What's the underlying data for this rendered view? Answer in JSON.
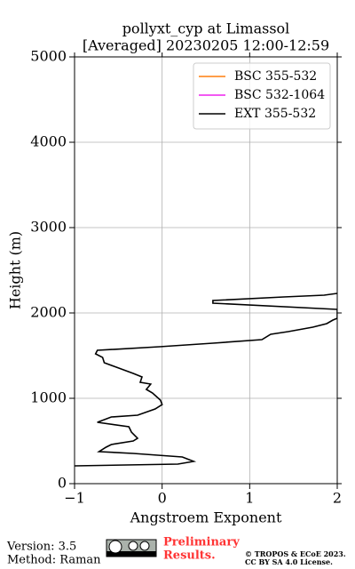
{
  "chart_data": {
    "type": "line",
    "title": "pollyxt_cyp at Limassol",
    "subtitle": "[Averaged] 20230205 12:00-12:59",
    "x_label": "Angstroem Exponent",
    "y_label": "Height (m)",
    "y": [
      208,
      229,
      260,
      312,
      354,
      375,
      427,
      458,
      500,
      531,
      604,
      667,
      719,
      781,
      802,
      875,
      927,
      979,
      1063,
      1104,
      1167,
      1188,
      1250,
      1292,
      1375,
      1417,
      1479,
      1521,
      1563,
      1604,
      1646,
      1688,
      1750,
      1781,
      1833,
      1875,
      1917,
      1938,
      2042,
      2115,
      2146,
      2188,
      2208,
      2229
    ],
    "series": [
      {
        "name": "BSC 355-532",
        "color": "#ff7f0e",
        "values": [
          null,
          null,
          null,
          null,
          null,
          null,
          null,
          null,
          null,
          null,
          null,
          null,
          null,
          null,
          null,
          null,
          null,
          null,
          null,
          null,
          null,
          null,
          null,
          null,
          null,
          null,
          null,
          null,
          null,
          null,
          null,
          null,
          null,
          null,
          null,
          null,
          null,
          null,
          null,
          null,
          null,
          null,
          null,
          null
        ]
      },
      {
        "name": "BSC 532-1064",
        "color": "#ee22ee",
        "values": [
          null,
          null,
          null,
          null,
          null,
          null,
          null,
          null,
          null,
          null,
          null,
          null,
          null,
          null,
          null,
          null,
          null,
          null,
          null,
          null,
          null,
          null,
          null,
          null,
          null,
          null,
          null,
          null,
          null,
          null,
          null,
          null,
          null,
          null,
          null,
          null,
          null,
          null,
          null,
          null,
          null,
          null,
          null,
          null
        ]
      },
      {
        "name": "EXT 355-532",
        "color": "#000000",
        "values": [
          -1.0,
          0.18,
          0.36,
          0.23,
          -0.33,
          -0.72,
          -0.64,
          -0.58,
          -0.33,
          -0.28,
          -0.35,
          -0.38,
          -0.74,
          -0.58,
          -0.28,
          -0.08,
          0.0,
          -0.02,
          -0.11,
          -0.18,
          -0.13,
          -0.25,
          -0.23,
          -0.33,
          -0.55,
          -0.66,
          -0.68,
          -0.76,
          -0.74,
          -0.03,
          0.58,
          1.14,
          1.24,
          1.44,
          1.72,
          1.88,
          1.95,
          2.0,
          2.0,
          0.58,
          0.58,
          1.39,
          1.85,
          2.0
        ]
      }
    ],
    "xlim": [
      -1,
      2
    ],
    "xticks": [
      {
        "value": -1,
        "label": "−1"
      },
      0,
      1,
      2
    ],
    "ylim": [
      0,
      5000
    ],
    "yticks": [
      0,
      1000,
      2000,
      3000,
      4000,
      5000
    ],
    "grid": true,
    "legend": "upper right"
  },
  "footer": {
    "version": "Version: 3.5",
    "method": "Method: Raman",
    "preliminary": [
      "Preliminary",
      "Results."
    ],
    "copyright": [
      "© TROPOS & ECoE 2023.",
      "CC BY SA 4.0 License."
    ]
  }
}
